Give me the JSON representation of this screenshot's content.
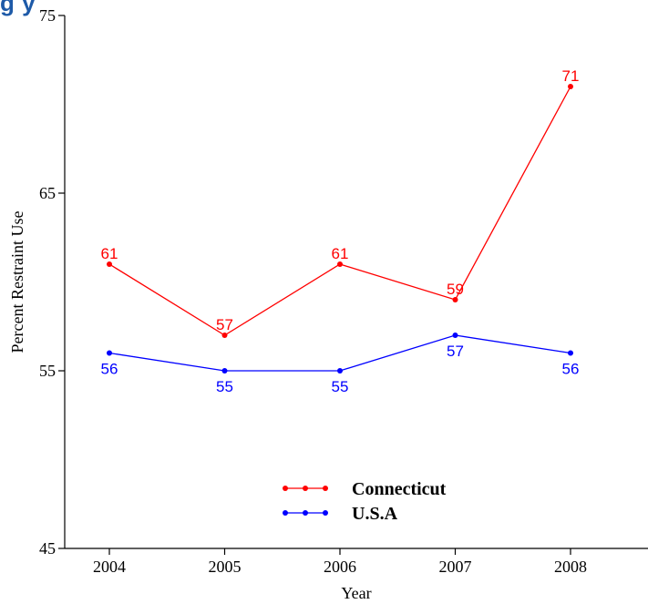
{
  "header": {
    "title_fragment": "g                                  y"
  },
  "chart_data": {
    "type": "line",
    "title": "",
    "xlabel": "Year",
    "ylabel": "Percent Restraint Use",
    "categories": [
      "2004",
      "2005",
      "2006",
      "2007",
      "2008"
    ],
    "ylim": [
      45,
      75
    ],
    "yticks": [
      45,
      55,
      65,
      75
    ],
    "grid": false,
    "legend_position": "bottom-center",
    "series": [
      {
        "name": "Connecticut",
        "color": "#ff0000",
        "values": [
          61,
          57,
          61,
          59,
          71
        ],
        "labels": [
          "61",
          "57",
          "61",
          "59",
          "71"
        ],
        "label_position": "above"
      },
      {
        "name": "U.S.A",
        "color": "#0000ff",
        "values": [
          56,
          55,
          55,
          57,
          56
        ],
        "labels": [
          "56",
          "55",
          "55",
          "57",
          "56"
        ],
        "label_position": "below"
      }
    ]
  }
}
